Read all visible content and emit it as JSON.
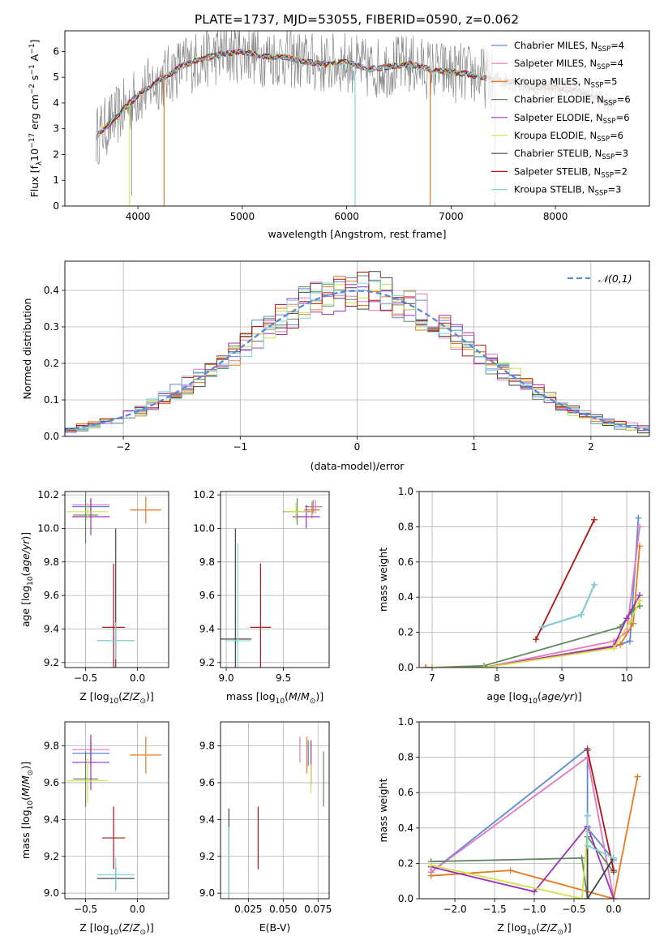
{
  "figure_title": "PLATE=1737, MJD=53055, FIBERID=0590, z=0.062",
  "colors": {
    "Chabrier MILES": "#5b8bd6",
    "Salpeter MILES": "#e377c2",
    "Kroupa MILES": "#e6791e",
    "Chabrier ELODIE": "#5f8a5f",
    "Salpeter ELODIE": "#9b30b8",
    "Kroupa ELODIE": "#d4e04a",
    "Chabrier STELIB": "#444444",
    "Salpeter STELIB": "#b01515",
    "Kroupa STELIB": "#7fd3dd",
    "data": "#888888"
  },
  "chart_data": [
    {
      "type": "line",
      "title": "PLATE=1737, MJD=53055, FIBERID=0590, z=0.062",
      "xlabel": "wavelength [Angstrom, rest frame]",
      "ylabel": "Flux [f_λ 10^-17 erg cm^-2 s^-1 A^-1]",
      "xlim": [
        3300,
        8900
      ],
      "ylim": [
        0,
        6.8
      ],
      "xticks": [
        4000,
        5000,
        6000,
        7000,
        8000
      ],
      "yticks": [
        0,
        1,
        2,
        3,
        4,
        5,
        6
      ],
      "legend_position": "right",
      "series": [
        {
          "name": "Chabrier MILES, N_SSP=4"
        },
        {
          "name": "Salpeter MILES, N_SSP=4"
        },
        {
          "name": "Kroupa MILES, N_SSP=5"
        },
        {
          "name": "Chabrier ELODIE, N_SSP=6"
        },
        {
          "name": "Salpeter ELODIE, N_SSP=6"
        },
        {
          "name": "Kroupa ELODIE, N_SSP=6"
        },
        {
          "name": "Chabrier STELIB, N_SSP=3"
        },
        {
          "name": "Salpeter STELIB, N_SSP=2"
        },
        {
          "name": "Kroupa STELIB, N_SSP=3"
        }
      ],
      "model_continuum": {
        "x": [
          3600,
          3700,
          3800,
          3900,
          4000,
          4100,
          4200,
          4300,
          4400,
          4600,
          4800,
          5000,
          5200,
          5400,
          5600,
          5800,
          6000,
          6200,
          6400,
          6600,
          6800,
          7000,
          7200,
          7400,
          7600,
          7800,
          8000,
          8200,
          8400,
          8600
        ],
        "y": [
          2.7,
          3.1,
          3.5,
          3.9,
          4.3,
          4.6,
          4.9,
          5.1,
          5.4,
          5.7,
          5.9,
          6.0,
          5.8,
          5.8,
          5.6,
          5.5,
          5.6,
          5.3,
          5.4,
          5.5,
          5.3,
          5.2,
          5.1,
          4.9,
          4.8,
          4.6,
          4.6,
          4.5,
          4.2,
          3.8
        ]
      },
      "data_noise_amplitude": 1.2
    },
    {
      "type": "line",
      "xlabel": "(data-model)/error",
      "ylabel": "Normed distribution",
      "xlim": [
        -2.5,
        2.5
      ],
      "ylim": [
        0,
        0.48
      ],
      "xticks": [
        -2,
        -1,
        0,
        1,
        2
      ],
      "yticks": [
        0.0,
        0.1,
        0.2,
        0.3,
        0.4
      ],
      "legend": [
        "𝒩(0,1)"
      ],
      "legend_position": "top-right",
      "grid": true,
      "normal_curve": {
        "mean": 0,
        "sigma": 1
      }
    },
    {
      "type": "scatter",
      "xlabel": "Z [log10(Z/Z⊙)]",
      "ylabel": "age [log10(age/yr)]",
      "xlim": [
        -0.7,
        0.3
      ],
      "ylim": [
        9.17,
        10.22
      ],
      "xticks": [
        -0.5,
        0.0
      ],
      "yticks": [
        9.2,
        9.4,
        9.6,
        9.8,
        10.0,
        10.2
      ],
      "grid": true,
      "points": [
        {
          "model": "Chabrier MILES",
          "x": -0.45,
          "y": 10.13,
          "xerr": 0.18,
          "yerr": 0.04
        },
        {
          "model": "Salpeter MILES",
          "x": -0.45,
          "y": 10.14,
          "xerr": 0.18,
          "yerr": 0.04
        },
        {
          "model": "Kroupa MILES",
          "x": 0.08,
          "y": 10.11,
          "xerr": 0.15,
          "yerr": 0.08
        },
        {
          "model": "Chabrier ELODIE",
          "x": -0.5,
          "y": 10.08,
          "xerr": 0.12,
          "yerr": 0.17
        },
        {
          "model": "Salpeter ELODIE",
          "x": -0.45,
          "y": 10.07,
          "xerr": 0.18,
          "yerr": 0.11
        },
        {
          "model": "Kroupa ELODIE",
          "x": -0.48,
          "y": 10.1,
          "xerr": 0.2,
          "yerr": 0.05
        },
        {
          "model": "Chabrier STELIB",
          "x": -0.21,
          "y": 9.33,
          "xerr": 0.18,
          "yerr": 0.67
        },
        {
          "model": "Salpeter STELIB",
          "x": -0.23,
          "y": 9.41,
          "xerr": 0.11,
          "yerr": 0.38
        },
        {
          "model": "Kroupa STELIB",
          "x": -0.21,
          "y": 9.33,
          "xerr": 0.18,
          "yerr": 0.11
        }
      ]
    },
    {
      "type": "scatter",
      "xlabel": "mass [log10(M/M⊙)]",
      "xlim": [
        8.95,
        9.9
      ],
      "ylim": [
        9.17,
        10.22
      ],
      "xticks": [
        9.0,
        9.5
      ],
      "yticks": [
        9.2,
        9.4,
        9.6,
        9.8,
        10.0,
        10.2
      ],
      "grid": true,
      "points": [
        {
          "model": "Chabrier MILES",
          "x": 9.76,
          "y": 10.13,
          "xerr": 0.07,
          "yerr": 0.04
        },
        {
          "model": "Salpeter MILES",
          "x": 9.78,
          "y": 10.13,
          "xerr": 0.06,
          "yerr": 0.04
        },
        {
          "model": "Kroupa MILES",
          "x": 9.75,
          "y": 10.11,
          "xerr": 0.07,
          "yerr": 0.05
        },
        {
          "model": "Chabrier ELODIE",
          "x": 9.62,
          "y": 10.1,
          "xerr": 0.12,
          "yerr": 0.08
        },
        {
          "model": "Salpeter ELODIE",
          "x": 9.7,
          "y": 10.07,
          "xerr": 0.12,
          "yerr": 0.07
        },
        {
          "model": "Kroupa ELODIE",
          "x": 9.61,
          "y": 10.1,
          "xerr": 0.1,
          "yerr": 0.05
        },
        {
          "model": "Chabrier STELIB",
          "x": 9.08,
          "y": 9.34,
          "xerr": 0.14,
          "yerr": 0.66
        },
        {
          "model": "Salpeter STELIB",
          "x": 9.3,
          "y": 9.41,
          "xerr": 0.09,
          "yerr": 0.38
        },
        {
          "model": "Kroupa STELIB",
          "x": 9.1,
          "y": 9.33,
          "xerr": 0.11,
          "yerr": 0.58
        }
      ]
    },
    {
      "type": "line",
      "xlabel": "age [log10(age/yr)]",
      "ylabel": "mass weight",
      "xlim": [
        6.8,
        10.35
      ],
      "ylim": [
        0,
        1.0
      ],
      "xticks": [
        7,
        8,
        9,
        10
      ],
      "yticks": [
        0.0,
        0.2,
        0.4,
        0.6,
        0.8,
        1.0
      ],
      "grid": true,
      "series": [
        {
          "model": "Chabrier MILES",
          "x": [
            6.9,
            7.8,
            9.8,
            10.05,
            10.18
          ],
          "y": [
            0.0,
            0.0,
            0.12,
            0.15,
            0.85
          ]
        },
        {
          "model": "Salpeter MILES",
          "x": [
            6.9,
            7.8,
            9.8,
            10.0,
            10.2
          ],
          "y": [
            0.0,
            0.0,
            0.15,
            0.2,
            0.8
          ]
        },
        {
          "model": "Kroupa MILES",
          "x": [
            6.9,
            7.8,
            9.9,
            10.1,
            10.2
          ],
          "y": [
            0.0,
            0.0,
            0.13,
            0.25,
            0.69
          ]
        },
        {
          "model": "Chabrier ELODIE",
          "x": [
            7.0,
            7.8,
            9.9,
            10.1,
            10.2
          ],
          "y": [
            0.0,
            0.01,
            0.23,
            0.33,
            0.35
          ]
        },
        {
          "model": "Salpeter ELODIE",
          "x": [
            7.0,
            7.8,
            9.8,
            10.0,
            10.2
          ],
          "y": [
            0.0,
            0.0,
            0.12,
            0.28,
            0.41
          ]
        },
        {
          "model": "Kroupa ELODIE",
          "x": [
            7.0,
            7.8,
            9.8,
            10.05,
            10.2
          ],
          "y": [
            0.0,
            0.0,
            0.11,
            0.26,
            0.38
          ]
        },
        {
          "model": "Chabrier STELIB",
          "x": [
            8.7,
            9.3,
            9.5
          ],
          "y": [
            0.23,
            0.3,
            0.47
          ]
        },
        {
          "model": "Salpeter STELIB",
          "x": [
            8.6,
            9.5
          ],
          "y": [
            0.16,
            0.84
          ]
        },
        {
          "model": "Kroupa STELIB",
          "x": [
            8.7,
            9.3,
            9.5
          ],
          "y": [
            0.23,
            0.3,
            0.47
          ]
        }
      ]
    },
    {
      "type": "scatter",
      "xlabel": "Z [log10(Z/Z⊙)]",
      "ylabel": "mass [log10(M/M⊙)]",
      "xlim": [
        -0.7,
        0.3
      ],
      "ylim": [
        8.97,
        9.93
      ],
      "xticks": [
        -0.5,
        0.0
      ],
      "yticks": [
        9.0,
        9.2,
        9.4,
        9.6,
        9.8
      ],
      "grid": true,
      "points": [
        {
          "model": "Chabrier MILES",
          "x": -0.45,
          "y": 9.76,
          "xerr": 0.18,
          "yerr": 0.07
        },
        {
          "model": "Salpeter MILES",
          "x": -0.45,
          "y": 9.78,
          "xerr": 0.18,
          "yerr": 0.06
        },
        {
          "model": "Kroupa MILES",
          "x": 0.08,
          "y": 9.75,
          "xerr": 0.15,
          "yerr": 0.1
        },
        {
          "model": "Chabrier ELODIE",
          "x": -0.5,
          "y": 9.62,
          "xerr": 0.12,
          "yerr": 0.15
        },
        {
          "model": "Salpeter ELODIE",
          "x": -0.45,
          "y": 9.71,
          "xerr": 0.18,
          "yerr": 0.15
        },
        {
          "model": "Kroupa ELODIE",
          "x": -0.48,
          "y": 9.61,
          "xerr": 0.2,
          "yerr": 0.12
        },
        {
          "model": "Chabrier STELIB",
          "x": -0.21,
          "y": 9.08,
          "xerr": 0.18,
          "yerr": 0.06
        },
        {
          "model": "Salpeter STELIB",
          "x": -0.23,
          "y": 9.3,
          "xerr": 0.11,
          "yerr": 0.17
        },
        {
          "model": "Kroupa STELIB",
          "x": -0.21,
          "y": 9.1,
          "xerr": 0.18,
          "yerr": 0.09
        }
      ]
    },
    {
      "type": "scatter",
      "xlabel": "E(B-V)",
      "xlim": [
        0.005,
        0.083
      ],
      "ylim": [
        8.97,
        9.93
      ],
      "xticks": [
        0.025,
        0.05,
        0.075
      ],
      "yticks": [
        9.0,
        9.2,
        9.4,
        9.6,
        9.8
      ],
      "grid": true,
      "points": [
        {
          "model": "Chabrier MILES",
          "x": 0.068,
          "y": 9.76,
          "yerr": 0.07
        },
        {
          "model": "Salpeter MILES",
          "x": 0.062,
          "y": 9.78,
          "yerr": 0.07
        },
        {
          "model": "Kroupa MILES",
          "x": 0.067,
          "y": 9.75,
          "yerr": 0.1
        },
        {
          "model": "Chabrier ELODIE",
          "x": 0.079,
          "y": 9.62,
          "yerr": 0.15
        },
        {
          "model": "Salpeter ELODIE",
          "x": 0.07,
          "y": 9.71,
          "yerr": 0.12
        },
        {
          "model": "Kroupa ELODIE",
          "x": 0.07,
          "y": 9.62,
          "yerr": 0.08
        },
        {
          "model": "Chabrier STELIB",
          "x": 0.011,
          "y": 9.08,
          "yerr": 0.38
        },
        {
          "model": "Salpeter STELIB",
          "x": 0.032,
          "y": 9.3,
          "yerr": 0.17
        },
        {
          "model": "Kroupa STELIB",
          "x": 0.011,
          "y": 9.1,
          "yerr": 0.26
        }
      ]
    },
    {
      "type": "line",
      "xlabel": "Z [log10(Z/Z⊙)]",
      "ylabel": "mass weight",
      "xlim": [
        -2.45,
        0.45
      ],
      "ylim": [
        0,
        1.0
      ],
      "xticks": [
        -2.0,
        -1.5,
        -1.0,
        -0.5,
        0.0
      ],
      "yticks": [
        0.0,
        0.2,
        0.4,
        0.6,
        0.8,
        1.0
      ],
      "grid": true,
      "series": [
        {
          "model": "Chabrier MILES",
          "x": [
            -2.3,
            -0.33,
            -0.33,
            0.0
          ],
          "y": [
            0.15,
            0.85,
            0.4,
            0.22
          ]
        },
        {
          "model": "Salpeter MILES",
          "x": [
            -2.3,
            -0.33,
            0.0
          ],
          "y": [
            0.15,
            0.8,
            0.0
          ]
        },
        {
          "model": "Kroupa MILES",
          "x": [
            -2.3,
            -1.3,
            0.0,
            0.3
          ],
          "y": [
            0.13,
            0.16,
            0.0,
            0.69
          ]
        },
        {
          "model": "Chabrier ELODIE",
          "x": [
            -2.3,
            -0.4,
            -0.33,
            -0.33,
            0.0
          ],
          "y": [
            0.21,
            0.23,
            0.0,
            0.35,
            0.15
          ]
        },
        {
          "model": "Salpeter ELODIE",
          "x": [
            -2.3,
            -1.0,
            -0.33,
            0.0
          ],
          "y": [
            0.18,
            0.04,
            0.41,
            0.0
          ]
        },
        {
          "model": "Kroupa ELODIE",
          "x": [
            -2.3,
            -0.4,
            -0.33,
            -0.33
          ],
          "y": [
            0.19,
            0.0,
            0.38,
            0.0
          ]
        },
        {
          "model": "Chabrier STELIB",
          "x": [
            -0.33,
            -0.33,
            0.0
          ],
          "y": [
            0.47,
            0.0,
            0.23
          ]
        },
        {
          "model": "Salpeter STELIB",
          "x": [
            -0.33,
            0.0
          ],
          "y": [
            0.84,
            0.16
          ]
        },
        {
          "model": "Kroupa STELIB",
          "x": [
            -0.33,
            -0.33,
            0.0
          ],
          "y": [
            0.47,
            0.3,
            0.23
          ]
        }
      ]
    }
  ]
}
